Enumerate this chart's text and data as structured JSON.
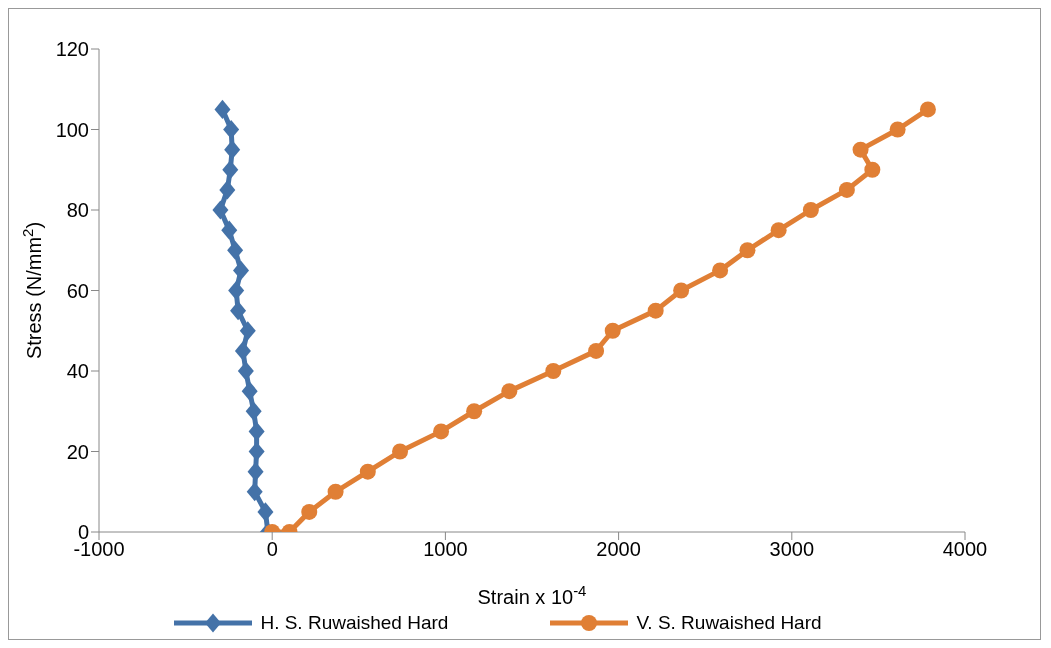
{
  "chart_data": {
    "type": "line",
    "xlabel": "Strain x 10$^{-4}$",
    "ylabel": "Stress (N/mm$^{2}$)",
    "xlim": [
      -1000,
      4000
    ],
    "xticks": [
      -1000,
      0,
      1000,
      2000,
      3000,
      4000
    ],
    "ylim": [
      0,
      120
    ],
    "yticks": [
      0,
      20,
      40,
      60,
      80,
      100,
      120
    ],
    "grid": false,
    "legend": "bottom",
    "line_style": "solid",
    "series": [
      {
        "name": "H. S. Ruwaished Hard",
        "color": "#4472a8",
        "marker": "diamond",
        "x": [
          -25,
          -39,
          -101,
          -96,
          -90,
          -90,
          -107,
          -130,
          -152,
          -169,
          -141,
          -197,
          -208,
          -180,
          -214,
          -248,
          -299,
          -259,
          -242,
          -231,
          -237,
          -287
        ],
        "values": [
          0,
          5,
          10,
          15,
          20,
          25,
          30,
          35,
          40,
          45,
          50,
          55,
          60,
          65,
          70,
          75,
          80,
          85,
          90,
          95,
          100,
          105
        ]
      },
      {
        "name": "V. S. Ruwaished Hard",
        "color": "#e07f35",
        "marker": "circle",
        "x": [
          0,
          100,
          214,
          366,
          552,
          738,
          975,
          1166,
          1369,
          1623,
          1870,
          1966,
          2214,
          2361,
          2586,
          2744,
          2924,
          3110,
          3318,
          3465,
          3397,
          3611,
          3786
        ],
        "values": [
          0,
          0,
          5,
          10,
          15,
          20,
          25,
          30,
          35,
          40,
          45,
          50,
          55,
          60,
          65,
          70,
          75,
          80,
          85,
          90,
          95,
          100,
          105
        ]
      }
    ]
  }
}
